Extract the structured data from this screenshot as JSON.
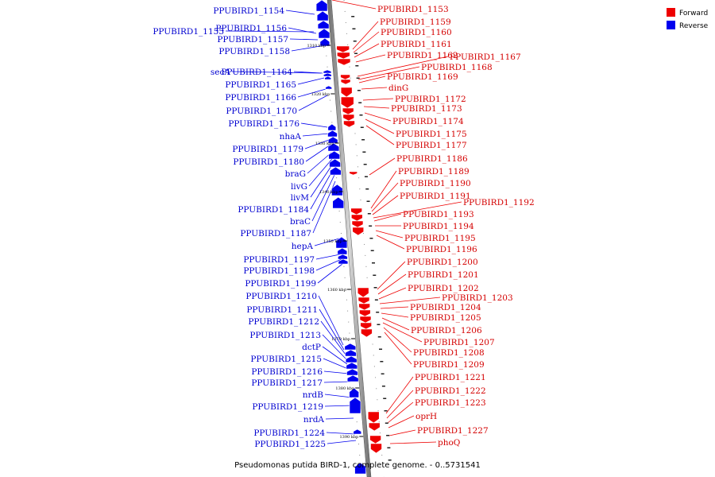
{
  "caption": "Pseudomonas putida BIRD-1, complete genome. - 0..5731541",
  "legend": [
    {
      "label": "Forward",
      "color": "#ee0000"
    },
    {
      "label": "Reverse",
      "color": "#0000ee"
    }
  ],
  "scale_marks": [
    "1310 kbp",
    "1320 kbp",
    "1330 kbp",
    "1340 kbp",
    "1350 kbp",
    "1360 kbp",
    "1370 kbp",
    "1380 kbp",
    "1390 kbp"
  ],
  "forward_labels": [
    "PPUBIRD1_1153",
    "PPUBIRD1_1159",
    "PPUBIRD1_1160",
    "PPUBIRD1_1161",
    "PPUBIRD1_1162",
    "PPUBIRD1_1167",
    "PPUBIRD1_1168",
    "PPUBIRD1_1169",
    "dinG",
    "PPUBIRD1_1172",
    "PPUBIRD1_1173",
    "PPUBIRD1_1174",
    "PPUBIRD1_1175",
    "PPUBIRD1_1177",
    "PPUBIRD1_1186",
    "PPUBIRD1_1189",
    "PPUBIRD1_1190",
    "PPUBIRD1_1191",
    "PPUBIRD1_1192",
    "PPUBIRD1_1193",
    "PPUBIRD1_1194",
    "PPUBIRD1_1195",
    "PPUBIRD1_1196",
    "PPUBIRD1_1200",
    "PPUBIRD1_1201",
    "PPUBIRD1_1202",
    "PPUBIRD1_1203",
    "PPUBIRD1_1204",
    "PPUBIRD1_1205",
    "PPUBIRD1_1206",
    "PPUBIRD1_1207",
    "PPUBIRD1_1208",
    "PPUBIRD1_1209",
    "PPUBIRD1_1221",
    "PPUBIRD1_1222",
    "PPUBIRD1_1223",
    "oprH",
    "PPUBIRD1_1227",
    "phoQ"
  ],
  "reverse_labels": [
    "PPUBIRD1_1154",
    "PPUBIRD1_1155",
    "PPUBIRD1_1156",
    "PPUBIRD1_1157",
    "PPUBIRD1_1158",
    "secA",
    "PPUBIRD1_1164",
    "PPUBIRD1_1165",
    "PPUBIRD1_1166",
    "PPUBIRD1_1170",
    "PPUBIRD1_1176",
    "nhaA",
    "PPUBIRD1_1179",
    "PPUBIRD1_1180",
    "braG",
    "livG",
    "livM",
    "PPUBIRD1_1184",
    "braC",
    "PPUBIRD1_1187",
    "hepA",
    "PPUBIRD1_1197",
    "PPUBIRD1_1198",
    "PPUBIRD1_1199",
    "PPUBIRD1_1210",
    "PPUBIRD1_1211",
    "PPUBIRD1_1212",
    "PPUBIRD1_1213",
    "dctP",
    "PPUBIRD1_1215",
    "PPUBIRD1_1216",
    "PPUBIRD1_1217",
    "nrdB",
    "PPUBIRD1_1219",
    "nrdA",
    "PPUBIRD1_1224",
    "PPUBIRD1_1225"
  ]
}
